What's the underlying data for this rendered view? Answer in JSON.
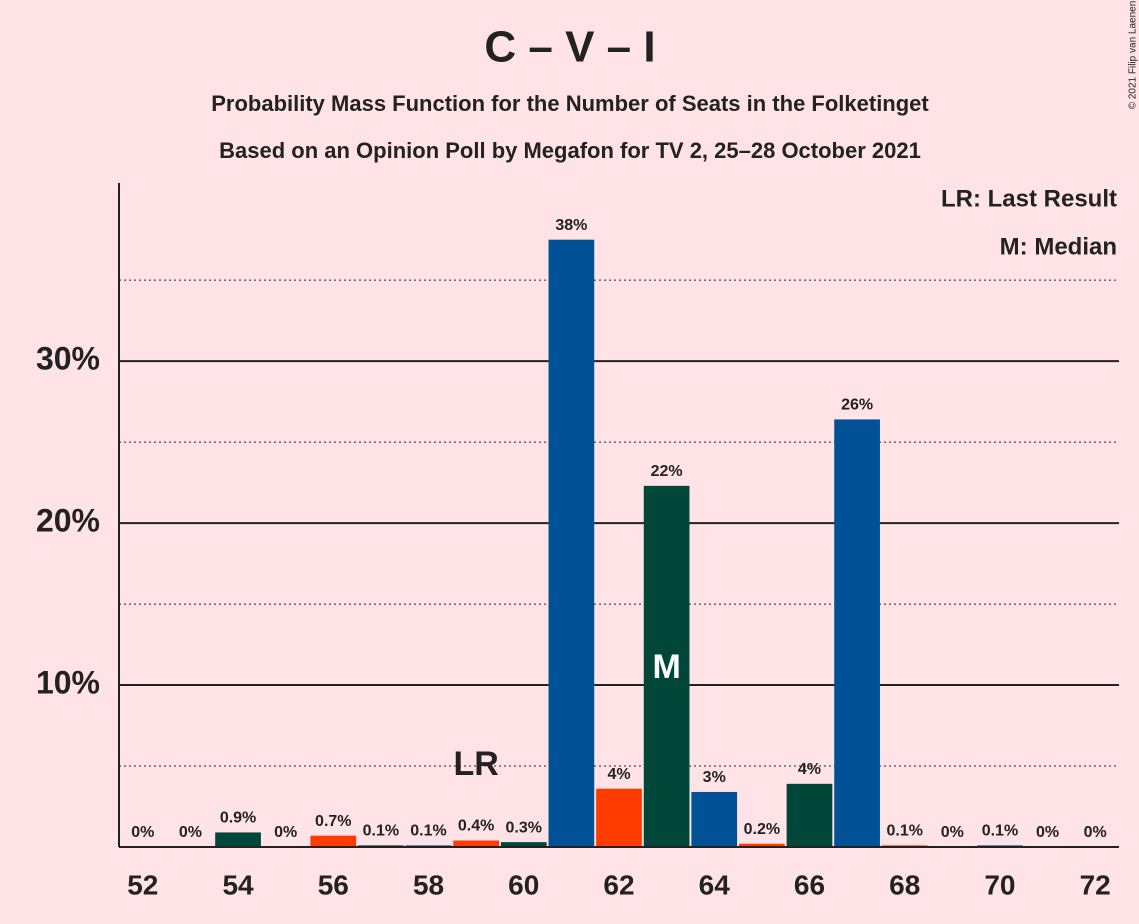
{
  "chart_data": {
    "type": "bar",
    "title": "C – V – I",
    "subtitle": "Probability Mass Function for the Number of Seats in the Folketinget",
    "subtitle2": "Based on an Opinion Poll by Megafon for TV 2, 25–28 October 2021",
    "copyright": "© 2021 Filip van Laenen",
    "x": [
      52,
      53,
      54,
      55,
      56,
      57,
      58,
      59,
      60,
      61,
      62,
      63,
      64,
      65,
      66,
      67,
      68,
      69,
      70,
      71,
      72
    ],
    "values": [
      0,
      0,
      0.9,
      0,
      0.7,
      0.1,
      0.1,
      0.4,
      0.3,
      37.5,
      3.6,
      22.3,
      3.4,
      0.2,
      3.9,
      26.4,
      0.1,
      0,
      0.1,
      0,
      0
    ],
    "value_labels": [
      "0%",
      "0%",
      "0.9%",
      "0%",
      "0.7%",
      "0.1%",
      "0.1%",
      "0.4%",
      "0.3%",
      "38%",
      "4%",
      "22%",
      "3%",
      "0.2%",
      "4%",
      "26%",
      "0.1%",
      "0%",
      "0.1%",
      "0%",
      "0%"
    ],
    "colors": [
      "#ff3c00",
      "#005195",
      "#00473a",
      "#005195",
      "#ff3c00",
      "#00473a",
      "#005195",
      "#ff3c00",
      "#00473a",
      "#005195",
      "#ff3c00",
      "#00473a",
      "#005195",
      "#ff3c00",
      "#00473a",
      "#005195",
      "#ff3c00",
      "#00473a",
      "#005195",
      "#ff3c00",
      "#00473a"
    ],
    "xlim": [
      51.5,
      72.5
    ],
    "xticks": [
      52,
      54,
      56,
      58,
      60,
      62,
      64,
      66,
      68,
      70,
      72
    ],
    "ylim": [
      0,
      41
    ],
    "yticks": [
      {
        "value": 10,
        "label": "10%"
      },
      {
        "value": 20,
        "label": "20%"
      },
      {
        "value": 30,
        "label": "30%"
      }
    ],
    "minor_yticks": [
      5,
      15,
      25,
      35
    ],
    "grid": true,
    "annotations": [
      {
        "x": 59,
        "y": 5,
        "label": "LR"
      },
      {
        "x": 63,
        "y": 11,
        "label": "M"
      }
    ],
    "legend": [
      "LR: Last Result",
      "M: Median"
    ]
  }
}
